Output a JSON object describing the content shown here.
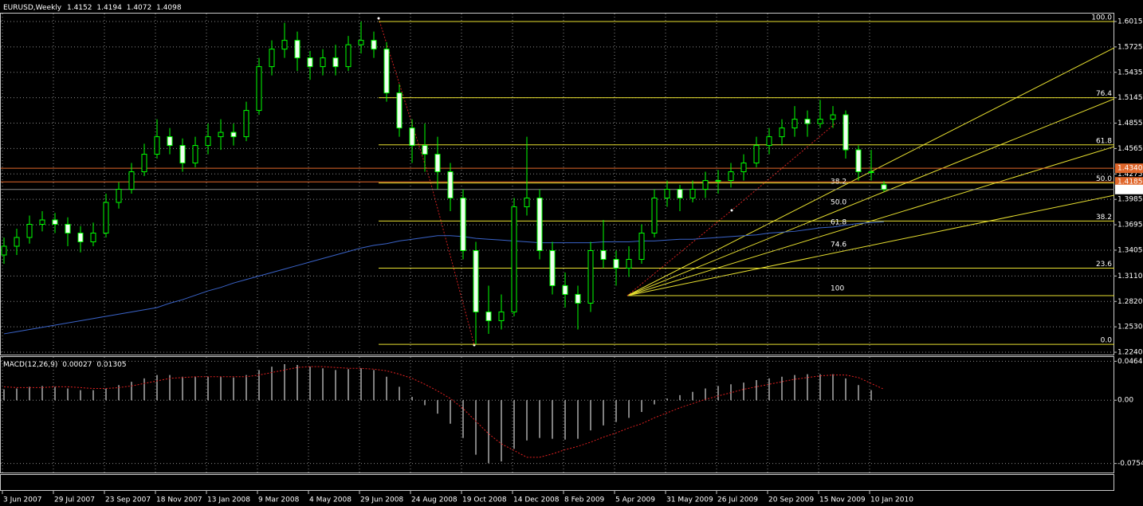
{
  "chart_data": {
    "type": "candlestick",
    "title": "EURUSD,Weekly",
    "x_labels": [
      "3 Jun 2007",
      "29 Jul 2007",
      "23 Sep 2007",
      "18 Nov 2007",
      "13 Jan 2008",
      "9 Mar 2008",
      "4 May 2008",
      "29 Jun 2008",
      "24 Aug 2008",
      "19 Oct 2008",
      "14 Dec 2008",
      "8 Feb 2009",
      "5 Apr 2009",
      "31 May 2009",
      "26 Jul 2009",
      "20 Sep 2009",
      "15 Nov 2009",
      "10 Jan 2010"
    ],
    "ohlc": [
      [
        1.335,
        1.355,
        1.325,
        1.345
      ],
      [
        1.345,
        1.365,
        1.335,
        1.355
      ],
      [
        1.355,
        1.38,
        1.348,
        1.37
      ],
      [
        1.37,
        1.385,
        1.362,
        1.375
      ],
      [
        1.375,
        1.383,
        1.36,
        1.37
      ],
      [
        1.37,
        1.378,
        1.345,
        1.36
      ],
      [
        1.36,
        1.368,
        1.338,
        1.35
      ],
      [
        1.35,
        1.372,
        1.345,
        1.36
      ],
      [
        1.36,
        1.405,
        1.355,
        1.395
      ],
      [
        1.395,
        1.418,
        1.388,
        1.41
      ],
      [
        1.41,
        1.44,
        1.405,
        1.43
      ],
      [
        1.43,
        1.462,
        1.425,
        1.45
      ],
      [
        1.45,
        1.49,
        1.445,
        1.47
      ],
      [
        1.47,
        1.48,
        1.45,
        1.46
      ],
      [
        1.46,
        1.468,
        1.43,
        1.44
      ],
      [
        1.44,
        1.47,
        1.435,
        1.46
      ],
      [
        1.46,
        1.485,
        1.45,
        1.47
      ],
      [
        1.47,
        1.49,
        1.455,
        1.475
      ],
      [
        1.475,
        1.485,
        1.46,
        1.47
      ],
      [
        1.47,
        1.51,
        1.465,
        1.5
      ],
      [
        1.5,
        1.56,
        1.495,
        1.55
      ],
      [
        1.55,
        1.58,
        1.54,
        1.57
      ],
      [
        1.57,
        1.6,
        1.56,
        1.58
      ],
      [
        1.58,
        1.59,
        1.545,
        1.56
      ],
      [
        1.56,
        1.568,
        1.535,
        1.55
      ],
      [
        1.55,
        1.57,
        1.54,
        1.56
      ],
      [
        1.56,
        1.575,
        1.54,
        1.55
      ],
      [
        1.55,
        1.585,
        1.545,
        1.575
      ],
      [
        1.575,
        1.6015,
        1.565,
        1.58
      ],
      [
        1.58,
        1.59,
        1.56,
        1.57
      ],
      [
        1.57,
        1.578,
        1.51,
        1.52
      ],
      [
        1.52,
        1.53,
        1.47,
        1.48
      ],
      [
        1.48,
        1.49,
        1.44,
        1.46
      ],
      [
        1.46,
        1.485,
        1.43,
        1.45
      ],
      [
        1.45,
        1.47,
        1.41,
        1.43
      ],
      [
        1.43,
        1.44,
        1.385,
        1.4
      ],
      [
        1.4,
        1.41,
        1.33,
        1.34
      ],
      [
        1.34,
        1.35,
        1.233,
        1.27
      ],
      [
        1.27,
        1.3,
        1.245,
        1.26
      ],
      [
        1.26,
        1.29,
        1.25,
        1.27
      ],
      [
        1.27,
        1.4,
        1.265,
        1.39
      ],
      [
        1.39,
        1.47,
        1.38,
        1.4
      ],
      [
        1.4,
        1.41,
        1.33,
        1.34
      ],
      [
        1.34,
        1.35,
        1.29,
        1.3
      ],
      [
        1.3,
        1.315,
        1.275,
        1.29
      ],
      [
        1.29,
        1.3,
        1.25,
        1.28
      ],
      [
        1.28,
        1.35,
        1.27,
        1.34
      ],
      [
        1.34,
        1.375,
        1.32,
        1.33
      ],
      [
        1.33,
        1.34,
        1.3,
        1.32
      ],
      [
        1.32,
        1.345,
        1.31,
        1.33
      ],
      [
        1.33,
        1.37,
        1.325,
        1.36
      ],
      [
        1.36,
        1.41,
        1.355,
        1.4
      ],
      [
        1.4,
        1.42,
        1.39,
        1.41
      ],
      [
        1.41,
        1.415,
        1.385,
        1.4
      ],
      [
        1.4,
        1.42,
        1.395,
        1.41
      ],
      [
        1.41,
        1.43,
        1.4,
        1.42
      ],
      [
        1.42,
        1.432,
        1.405,
        1.42
      ],
      [
        1.42,
        1.44,
        1.412,
        1.43
      ],
      [
        1.43,
        1.45,
        1.42,
        1.44
      ],
      [
        1.44,
        1.47,
        1.435,
        1.46
      ],
      [
        1.46,
        1.48,
        1.45,
        1.47
      ],
      [
        1.47,
        1.49,
        1.46,
        1.48
      ],
      [
        1.48,
        1.505,
        1.47,
        1.49
      ],
      [
        1.49,
        1.5,
        1.47,
        1.485
      ],
      [
        1.485,
        1.512,
        1.48,
        1.49
      ],
      [
        1.49,
        1.505,
        1.48,
        1.495
      ],
      [
        1.495,
        1.5,
        1.445,
        1.455
      ],
      [
        1.455,
        1.46,
        1.42,
        1.43
      ],
      [
        1.43,
        1.455,
        1.42,
        1.43
      ],
      [
        1.4152,
        1.4194,
        1.4072,
        1.4098
      ]
    ],
    "candle_color": "#00ff00",
    "ylim": [
      1.2213,
      1.6106
    ],
    "yticks": [
      1.6015,
      1.5725,
      1.5435,
      1.5145,
      1.4855,
      1.4565,
      1.4275,
      1.3985,
      1.3695,
      1.3405,
      {
        "value": 1.311,
        "label": "1.3110"
      },
      {
        "value": 1.282,
        "label": "1.2820"
      },
      {
        "value": 1.253,
        "label": "1.2530"
      },
      {
        "value": 1.224,
        "label": "1.2240"
      }
    ],
    "grid": true,
    "ma": {
      "color": "#3a63c8",
      "values": [
        1.245,
        1.2475,
        1.25,
        1.2525,
        1.255,
        1.2575,
        1.26,
        1.2625,
        1.265,
        1.2675,
        1.27,
        1.2725,
        1.275,
        1.28,
        1.284,
        1.289,
        1.294,
        1.298,
        1.303,
        1.307,
        1.311,
        1.315,
        1.319,
        1.323,
        1.327,
        1.331,
        1.335,
        1.339,
        1.343,
        1.346,
        1.348,
        1.351,
        1.353,
        1.355,
        1.357,
        1.357,
        1.356,
        1.354,
        1.353,
        1.352,
        1.351,
        1.35,
        1.349,
        1.349,
        1.349,
        1.349,
        1.349,
        1.35,
        1.35,
        1.35,
        1.351,
        1.351,
        1.352,
        1.353,
        1.353,
        1.354,
        1.355,
        1.356,
        1.357,
        1.358,
        1.36,
        1.361,
        1.362,
        1.364,
        1.366,
        1.367,
        1.369,
        1.371,
        1.372,
        1.373
      ]
    },
    "price_lines": [
      {
        "value": 1.434,
        "label": "1.4340",
        "color": "#e0662a"
      },
      {
        "value": 1.4185,
        "color": "#e0662a"
      },
      {
        "value": 1.4098,
        "color": "#ffffff"
      }
    ],
    "fib": {
      "color": "#e8e030",
      "high": 1.6015,
      "low": 1.233,
      "levels": [
        {
          "value": 100,
          "label": "100.0"
        },
        76.4,
        61.8,
        {
          "value": 50,
          "label": "50.0"
        },
        38.2,
        23.6,
        {
          "value": 0,
          "label": "0.0"
        }
      ]
    },
    "fan_labels": [
      38.2,
      {
        "value": 50,
        "label": "50.0"
      },
      61.8,
      74.6,
      100
    ],
    "macd": {
      "name": "MACD(12,26,9)",
      "ylim": [
        -0.0862,
        0.0515
      ],
      "yticks": [
        0.0464,
        {
          "value": 0,
          "label": "0.00"
        },
        -0.07541
      ],
      "histogram": [
        0.013,
        0.014,
        0.016,
        0.017,
        0.016,
        0.014,
        0.012,
        0.012,
        0.014,
        0.018,
        0.022,
        0.026,
        0.03,
        0.03,
        0.028,
        0.028,
        0.028,
        0.028,
        0.027,
        0.03,
        0.036,
        0.04,
        0.043,
        0.042,
        0.04,
        0.038,
        0.036,
        0.037,
        0.038,
        0.036,
        0.028,
        0.016,
        0.004,
        -0.006,
        -0.016,
        -0.028,
        -0.045,
        -0.065,
        -0.075,
        -0.073,
        -0.058,
        -0.048,
        -0.045,
        -0.046,
        -0.047,
        -0.046,
        -0.036,
        -0.03,
        -0.026,
        -0.021,
        -0.014,
        -0.005,
        0.002,
        0.006,
        0.01,
        0.014,
        0.017,
        0.019,
        0.021,
        0.024,
        0.026,
        0.028,
        0.03,
        0.031,
        0.031,
        0.031,
        0.026,
        0.018,
        0.012,
        0.00027
      ],
      "signal": {
        "color": "#e02020",
        "values": [
          0.016,
          0.015,
          0.015,
          0.015,
          0.016,
          0.016,
          0.015,
          0.014,
          0.014,
          0.015,
          0.017,
          0.02,
          0.023,
          0.026,
          0.027,
          0.028,
          0.028,
          0.028,
          0.028,
          0.028,
          0.03,
          0.033,
          0.036,
          0.039,
          0.04,
          0.04,
          0.039,
          0.038,
          0.038,
          0.037,
          0.035,
          0.031,
          0.026,
          0.019,
          0.011,
          0.002,
          -0.01,
          -0.025,
          -0.04,
          -0.052,
          -0.06,
          -0.068,
          -0.068,
          -0.064,
          -0.059,
          -0.055,
          -0.05,
          -0.044,
          -0.039,
          -0.033,
          -0.028,
          -0.021,
          -0.015,
          -0.009,
          -0.004,
          0.001,
          0.005,
          0.009,
          0.013,
          0.016,
          0.019,
          0.022,
          0.025,
          0.027,
          0.029,
          0.03,
          0.03,
          0.027,
          0.02,
          0.01305
        ]
      }
    }
  }
}
